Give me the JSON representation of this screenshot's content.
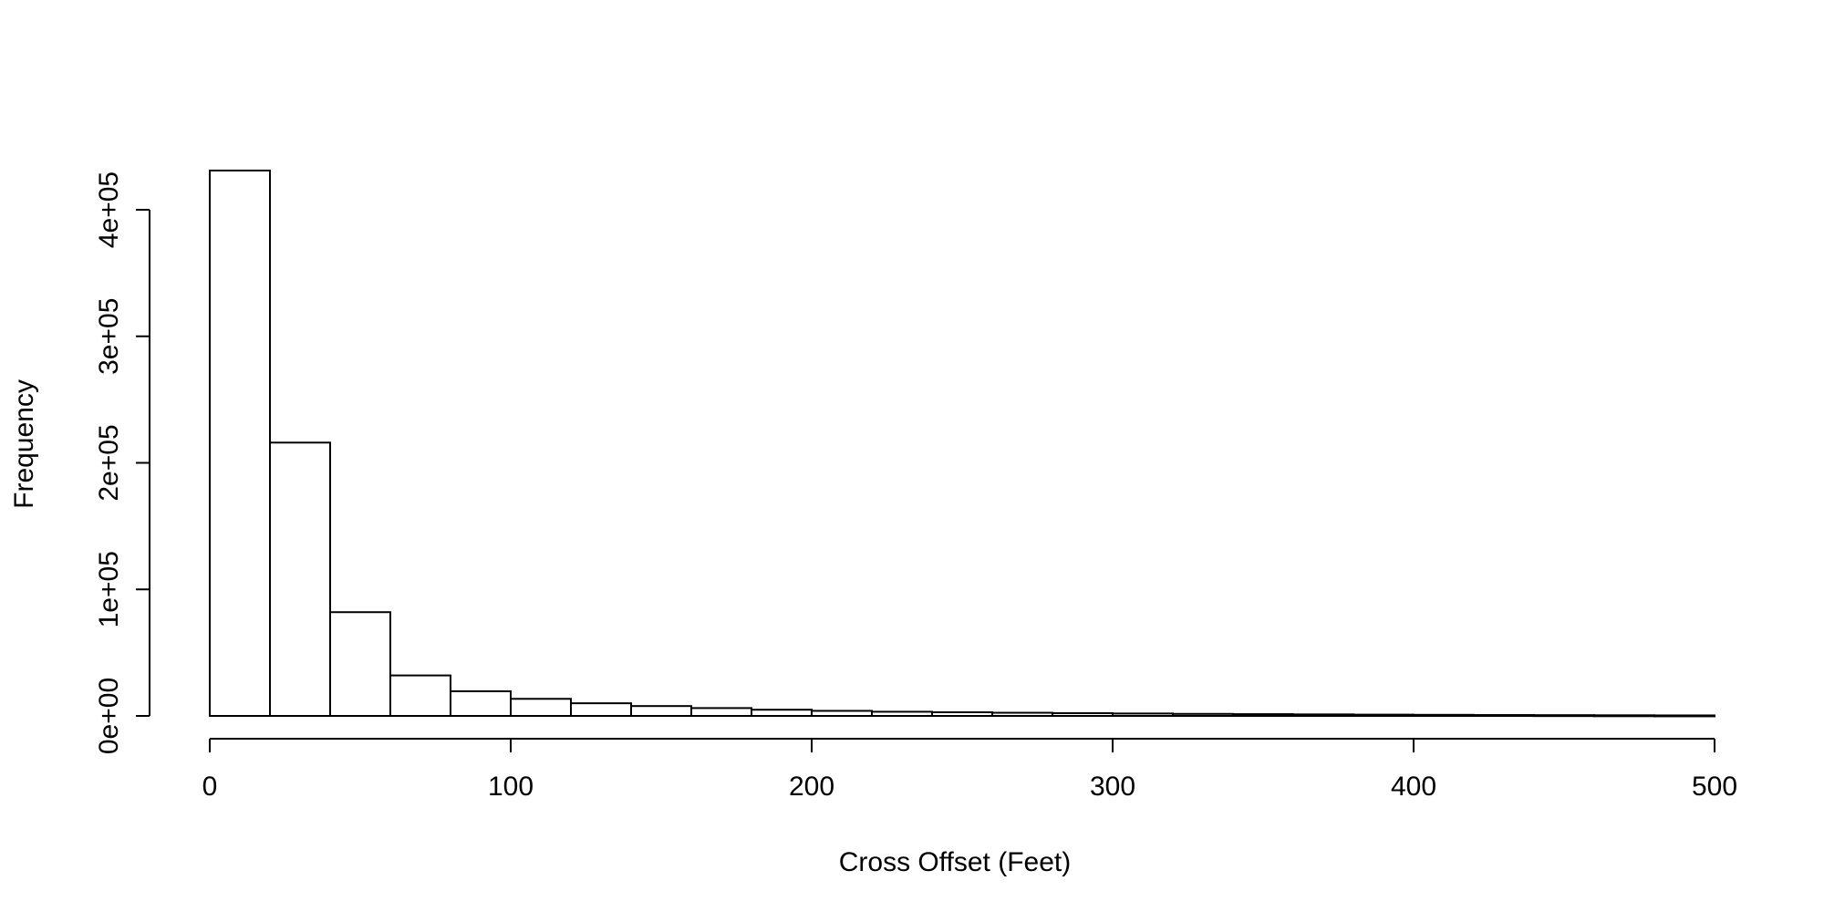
{
  "chart_data": {
    "type": "bar",
    "title": "",
    "xlabel": "Cross Offset (Feet)",
    "ylabel": "Frequency",
    "bin_width": 20,
    "bin_starts": [
      0,
      20,
      40,
      60,
      80,
      100,
      120,
      140,
      160,
      180,
      200,
      220,
      240,
      260,
      280,
      300,
      320,
      340,
      360,
      380,
      400,
      420,
      440,
      460,
      480
    ],
    "values": [
      431000,
      216000,
      82000,
      32000,
      19500,
      13500,
      10000,
      7800,
      6200,
      4900,
      4000,
      3300,
      2900,
      2500,
      2200,
      1900,
      1600,
      1400,
      1200,
      1000,
      850,
      700,
      600,
      500,
      400
    ],
    "xlim": [
      0,
      500
    ],
    "ylim": [
      0,
      431000
    ],
    "xticks": [
      {
        "value": 0,
        "label": "0"
      },
      {
        "value": 100,
        "label": "100"
      },
      {
        "value": 200,
        "label": "200"
      },
      {
        "value": 300,
        "label": "300"
      },
      {
        "value": 400,
        "label": "400"
      },
      {
        "value": 500,
        "label": "500"
      }
    ],
    "yticks": [
      {
        "value": 0,
        "label": "0e+00"
      },
      {
        "value": 100000,
        "label": "1e+05"
      },
      {
        "value": 200000,
        "label": "2e+05"
      },
      {
        "value": 300000,
        "label": "3e+05"
      },
      {
        "value": 400000,
        "label": "4e+05"
      }
    ],
    "grid": false,
    "legend": "none"
  }
}
